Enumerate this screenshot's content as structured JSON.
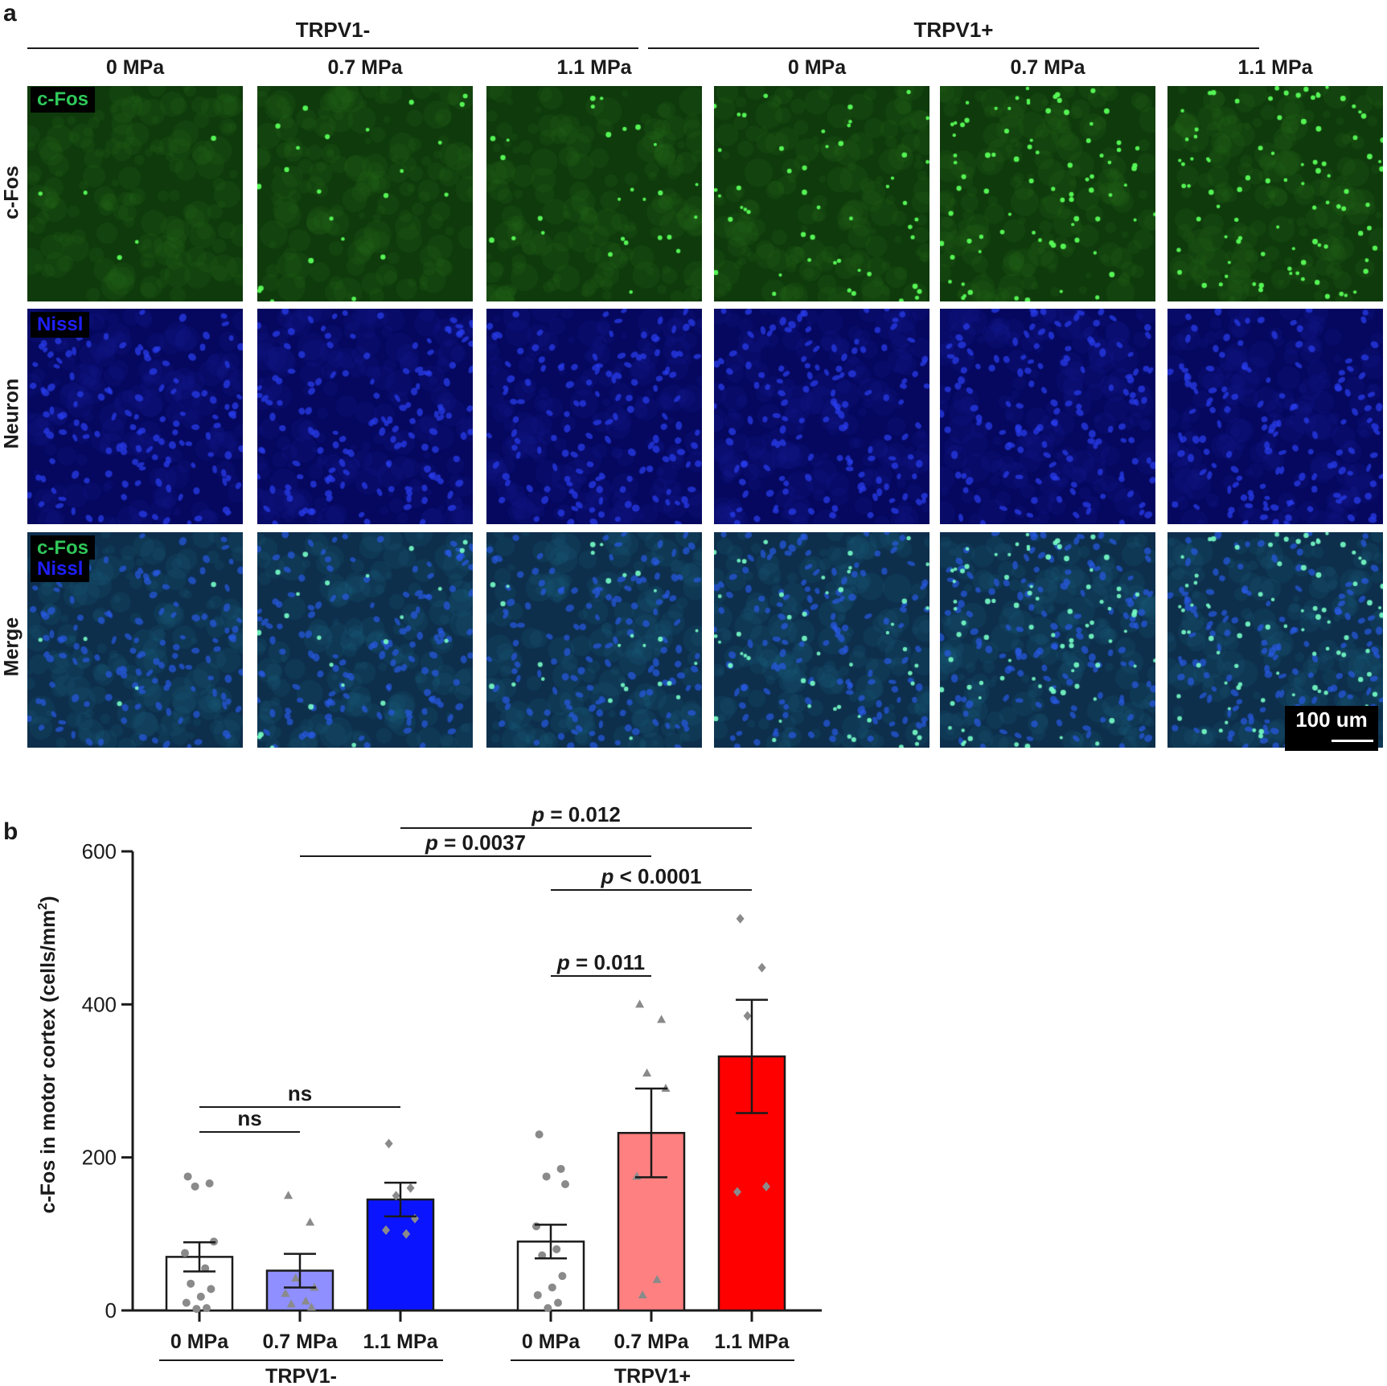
{
  "panel_a": {
    "letter": "a",
    "groups": [
      "TRPV1-",
      "TRPV1+"
    ],
    "columns": [
      "0 MPa",
      "0.7 MPa",
      "1.1 MPa",
      "0 MPa",
      "0.7 MPa",
      "1.1 MPa"
    ],
    "rows": [
      "c-Fos",
      "Neuron",
      "Merge"
    ],
    "channel_tags": {
      "cfos": "c-Fos",
      "nissl": "Nissl"
    },
    "channel_colors": {
      "cfos": "#2fc85a",
      "nissl": "#1f1fff"
    },
    "scale_bar": "100 um",
    "cfos_density_levels": [
      0.05,
      0.25,
      0.3,
      0.55,
      0.9,
      1.0
    ]
  },
  "panel_b": {
    "letter": "b",
    "ylabel_main": "c-Fos in motor cortex (cells/mm",
    "ylabel_sup": "2",
    "ylabel_close": ")",
    "yticks": [
      "0",
      "200",
      "400",
      "600"
    ],
    "group_labels": [
      "TRPV1-",
      "TRPV1+"
    ],
    "sig": [
      {
        "label": "ns"
      },
      {
        "label": "ns"
      },
      {
        "label": "p = 0.011"
      },
      {
        "label": "p < 0.0001"
      },
      {
        "label": "p = 0.0037"
      },
      {
        "label": "p = 0.012"
      }
    ]
  },
  "chart_data": {
    "type": "bar",
    "categories": [
      "0 MPa",
      "0.7 MPa",
      "1.1 MPa",
      "0 MPa",
      "0.7 MPa",
      "1.1 MPa"
    ],
    "groups": [
      "TRPV1-",
      "TRPV1-",
      "TRPV1-",
      "TRPV1+",
      "TRPV1+",
      "TRPV1+"
    ],
    "values": [
      70,
      52,
      145,
      90,
      232,
      332
    ],
    "sem": [
      19,
      22,
      22,
      22,
      58,
      74
    ],
    "bar_colors": [
      "#ffffff",
      "#8f8fff",
      "#0a14ff",
      "#ffffff",
      "#ff8080",
      "#ff0000"
    ],
    "points": [
      [
        175,
        166,
        162,
        90,
        75,
        55,
        35,
        28,
        18,
        10,
        3,
        2
      ],
      [
        150,
        115,
        42,
        30,
        22,
        12,
        8,
        4
      ],
      [
        218,
        160,
        150,
        120,
        105,
        100
      ],
      [
        230,
        185,
        175,
        165,
        110,
        80,
        72,
        45,
        30,
        20,
        10,
        3
      ],
      [
        400,
        380,
        310,
        290,
        175,
        40,
        20
      ],
      [
        512,
        448,
        385,
        162,
        155
      ]
    ],
    "point_markers": [
      "circle",
      "triangle",
      "diamond",
      "circle",
      "triangle",
      "diamond"
    ],
    "ylabel": "c-Fos in motor cortex (cells/mm2)",
    "ylim": [
      0,
      600
    ],
    "significance": [
      {
        "from": 0,
        "to": 1,
        "label": "ns"
      },
      {
        "from": 0,
        "to": 2,
        "label": "ns"
      },
      {
        "from": 3,
        "to": 4,
        "label": "p = 0.011"
      },
      {
        "from": 3,
        "to": 5,
        "label": "p < 0.0001"
      },
      {
        "from": 1,
        "to": 4,
        "label": "p = 0.0037"
      },
      {
        "from": 2,
        "to": 5,
        "label": "p = 0.012"
      }
    ]
  }
}
